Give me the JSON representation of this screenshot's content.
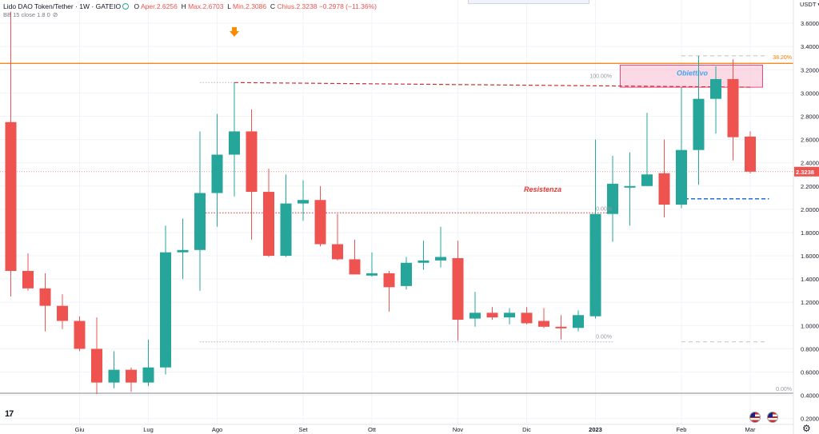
{
  "header": {
    "symbol": "Lido DAO Token/Tether · 1W · GATEIO",
    "open_label": "O",
    "open_text": "Aper.2.6256",
    "high_label": "H",
    "high_text": "Max.2.6703",
    "low_label": "L",
    "low_text": "Min.2.3086",
    "close_label": "C",
    "close_text": "Chius.2.3238",
    "change_text": "−0.2978 (−11.36%)",
    "indicator": "BB 15 close 1.8 0"
  },
  "currency": "USDT",
  "price_tag": "2.3238",
  "colors": {
    "up": "#26a69a",
    "down": "#ef5350",
    "orange": "#f57c00",
    "red_dash": "#d32f2f",
    "blue_dash": "#1e6ee6",
    "grid": "#f0f3fa",
    "zone": "#f8bbd0",
    "axis_text": "#131722",
    "fib_text": "#9598a1"
  },
  "icons": {
    "arrow": "down-arrow-icon",
    "logo": "tradingview-logo-icon",
    "settings": "gear-icon"
  },
  "chart_data": {
    "type": "candlestick",
    "ylim": [
      0.15,
      3.8
    ],
    "yticks": [
      "0.2000",
      "0.4000",
      "0.6000",
      "0.8000",
      "1.0000",
      "1.2000",
      "1.4000",
      "1.6000",
      "1.8000",
      "2.0000",
      "2.2000",
      "2.4000",
      "2.6000",
      "2.8000",
      "3.0000",
      "3.2000",
      "3.4000",
      "3.6000"
    ],
    "xticks": [
      {
        "label": "Giu",
        "index": 4
      },
      {
        "label": "Lug",
        "index": 8
      },
      {
        "label": "Ago",
        "index": 12
      },
      {
        "label": "Set",
        "index": 17
      },
      {
        "label": "Ott",
        "index": 21
      },
      {
        "label": "Nov",
        "index": 26
      },
      {
        "label": "Dic",
        "index": 30
      },
      {
        "label": "2023",
        "index": 34
      },
      {
        "label": "Feb",
        "index": 39
      },
      {
        "label": "Mar",
        "index": 43
      }
    ],
    "candles": [
      {
        "o": 2.75,
        "h": 3.7,
        "l": 1.25,
        "c": 1.47
      },
      {
        "o": 1.47,
        "h": 1.62,
        "l": 1.3,
        "c": 1.32
      },
      {
        "o": 1.32,
        "h": 1.45,
        "l": 0.95,
        "c": 1.17
      },
      {
        "o": 1.17,
        "h": 1.27,
        "l": 0.97,
        "c": 1.04
      },
      {
        "o": 1.04,
        "h": 1.08,
        "l": 0.78,
        "c": 0.8
      },
      {
        "o": 0.8,
        "h": 1.07,
        "l": 0.41,
        "c": 0.51
      },
      {
        "o": 0.51,
        "h": 0.78,
        "l": 0.46,
        "c": 0.62
      },
      {
        "o": 0.62,
        "h": 0.64,
        "l": 0.43,
        "c": 0.51
      },
      {
        "o": 0.51,
        "h": 0.88,
        "l": 0.48,
        "c": 0.64
      },
      {
        "o": 0.64,
        "h": 1.86,
        "l": 0.58,
        "c": 1.63
      },
      {
        "o": 1.63,
        "h": 1.92,
        "l": 1.4,
        "c": 1.65
      },
      {
        "o": 1.65,
        "h": 2.67,
        "l": 1.3,
        "c": 2.14
      },
      {
        "o": 2.14,
        "h": 2.82,
        "l": 1.85,
        "c": 2.47
      },
      {
        "o": 2.47,
        "h": 3.09,
        "l": 2.11,
        "c": 2.67
      },
      {
        "o": 2.67,
        "h": 2.86,
        "l": 1.74,
        "c": 2.15
      },
      {
        "o": 2.15,
        "h": 2.35,
        "l": 1.59,
        "c": 1.6
      },
      {
        "o": 1.6,
        "h": 2.3,
        "l": 1.59,
        "c": 2.05
      },
      {
        "o": 2.05,
        "h": 2.25,
        "l": 1.9,
        "c": 2.08
      },
      {
        "o": 2.08,
        "h": 2.2,
        "l": 1.68,
        "c": 1.7
      },
      {
        "o": 1.7,
        "h": 1.96,
        "l": 1.56,
        "c": 1.57
      },
      {
        "o": 1.57,
        "h": 1.74,
        "l": 1.45,
        "c": 1.44
      },
      {
        "o": 1.43,
        "h": 1.63,
        "l": 1.42,
        "c": 1.45
      },
      {
        "o": 1.45,
        "h": 1.47,
        "l": 1.12,
        "c": 1.33
      },
      {
        "o": 1.34,
        "h": 1.59,
        "l": 1.31,
        "c": 1.54
      },
      {
        "o": 1.54,
        "h": 1.73,
        "l": 1.48,
        "c": 1.56
      },
      {
        "o": 1.56,
        "h": 1.85,
        "l": 1.5,
        "c": 1.59
      },
      {
        "o": 1.58,
        "h": 1.73,
        "l": 0.87,
        "c": 1.05
      },
      {
        "o": 1.06,
        "h": 1.29,
        "l": 0.99,
        "c": 1.11
      },
      {
        "o": 1.11,
        "h": 1.16,
        "l": 1.05,
        "c": 1.07
      },
      {
        "o": 1.07,
        "h": 1.15,
        "l": 1.01,
        "c": 1.11
      },
      {
        "o": 1.11,
        "h": 1.16,
        "l": 1.01,
        "c": 1.02
      },
      {
        "o": 1.04,
        "h": 1.15,
        "l": 0.98,
        "c": 0.99
      },
      {
        "o": 0.99,
        "h": 1.09,
        "l": 0.88,
        "c": 0.98
      },
      {
        "o": 0.98,
        "h": 1.13,
        "l": 0.95,
        "c": 1.09
      },
      {
        "o": 1.08,
        "h": 2.6,
        "l": 1.06,
        "c": 1.96
      },
      {
        "o": 1.96,
        "h": 2.46,
        "l": 1.72,
        "c": 2.22
      },
      {
        "o": 2.19,
        "h": 2.49,
        "l": 1.86,
        "c": 2.2
      },
      {
        "o": 2.2,
        "h": 2.83,
        "l": 2.2,
        "c": 2.3
      },
      {
        "o": 2.31,
        "h": 2.6,
        "l": 1.93,
        "c": 2.04
      },
      {
        "o": 2.04,
        "h": 3.05,
        "l": 2.01,
        "c": 2.51
      },
      {
        "o": 2.51,
        "h": 3.32,
        "l": 2.21,
        "c": 2.95
      },
      {
        "o": 2.95,
        "h": 3.23,
        "l": 2.65,
        "c": 3.12
      },
      {
        "o": 3.12,
        "h": 3.29,
        "l": 2.42,
        "c": 2.62
      },
      {
        "o": 2.6256,
        "h": 2.6703,
        "l": 2.3086,
        "c": 2.3238
      }
    ],
    "levels": {
      "orange_line": {
        "price": 3.255,
        "label": "38.20%"
      },
      "red_dashed_top": {
        "price": 3.09,
        "from_index": 13,
        "to_index": 43
      },
      "red_dotted_mid": {
        "price": 1.97,
        "from_index": 11,
        "to_index": 35
      },
      "blue_dashed": {
        "price": 2.09,
        "from_index": 39,
        "to_index": 44
      },
      "gray_dotted_top": {
        "price": 3.09,
        "from_index": 11,
        "to_index": 13
      },
      "gray_dotted_low": {
        "price": 0.86,
        "from_index": 11,
        "to_index": 35
      },
      "gray_dashed_high": {
        "price": 3.32,
        "from_index": 39,
        "to_index": 44
      },
      "gray_dashed_low": {
        "price": 0.86,
        "from_index": 39,
        "to_index": 44
      },
      "current_price": {
        "price": 2.3238
      }
    },
    "zone": {
      "top": 3.24,
      "bottom": 3.05,
      "from_index": 36,
      "to_index": 44,
      "label": "Obiettivo"
    },
    "annotations": [
      {
        "text": "Resistenza",
        "index": 33,
        "price": 2.15
      },
      {
        "text": "100.00%",
        "index": 35,
        "price": 3.13
      },
      {
        "text": "0.00%",
        "index": 35,
        "price": 1.99
      },
      {
        "text": "0.00%",
        "index": 35,
        "price": 0.89
      },
      {
        "text": "0.00%",
        "index": 44,
        "price": 0.44
      },
      {
        "text": "38.20%",
        "index": 44,
        "price": 3.29
      }
    ],
    "arrow_index": 13
  }
}
